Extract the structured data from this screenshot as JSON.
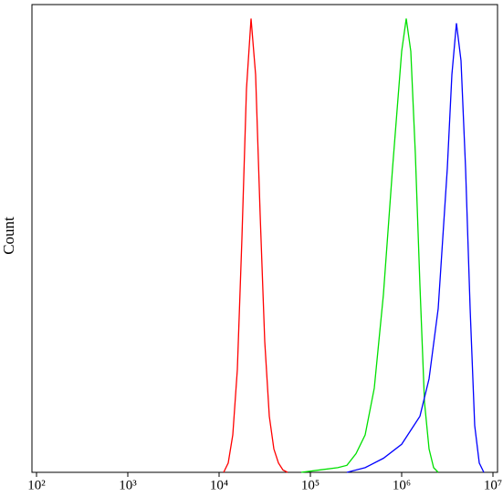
{
  "chart_data": {
    "type": "line",
    "y_label": "Count",
    "x_scale": "log",
    "xlim": [
      100,
      10000000
    ],
    "ylim": [
      0,
      100
    ],
    "xticks": [
      {
        "value": 100,
        "label": "10²"
      },
      {
        "value": 1000,
        "label": "10³"
      },
      {
        "value": 10000,
        "label": "10⁴"
      },
      {
        "value": 100000,
        "label": "10⁵"
      },
      {
        "value": 1000000,
        "label": "10⁶"
      },
      {
        "value": 10000000,
        "label": "10⁷"
      }
    ],
    "series": [
      {
        "color": "#ff0000",
        "x": [
          11220,
          12589,
          14125,
          15849,
          17783,
          19953,
          22387,
          25119,
          28184,
          31623,
          35481,
          39811,
          44668,
          50119,
          56234
        ],
        "values": [
          0,
          2,
          8,
          22,
          50,
          82,
          97,
          85,
          55,
          28,
          12,
          5,
          2,
          0.5,
          0
        ]
      },
      {
        "color": "#00e000",
        "x": [
          79433,
          125893,
          199526,
          251189,
          316228,
          398107,
          501187,
          630957,
          794328,
          1000000,
          1122018,
          1258925,
          1412538,
          1584893,
          1778279,
          1995262,
          2238721,
          2511886
        ],
        "values": [
          0,
          0.5,
          1,
          1.5,
          4,
          8,
          18,
          38,
          65,
          90,
          97,
          90,
          68,
          40,
          15,
          5,
          1,
          0
        ]
      },
      {
        "color": "#0000ff",
        "x": [
          251189,
          398107,
          630957,
          1000000,
          1584893,
          1995262,
          2511886,
          3162278,
          3548134,
          3981072,
          4466836,
          5011872,
          5623413,
          6309573,
          7079458,
          7943282
        ],
        "values": [
          0,
          1,
          3,
          6,
          12,
          20,
          35,
          65,
          85,
          96,
          88,
          65,
          35,
          10,
          2,
          0
        ]
      }
    ]
  }
}
